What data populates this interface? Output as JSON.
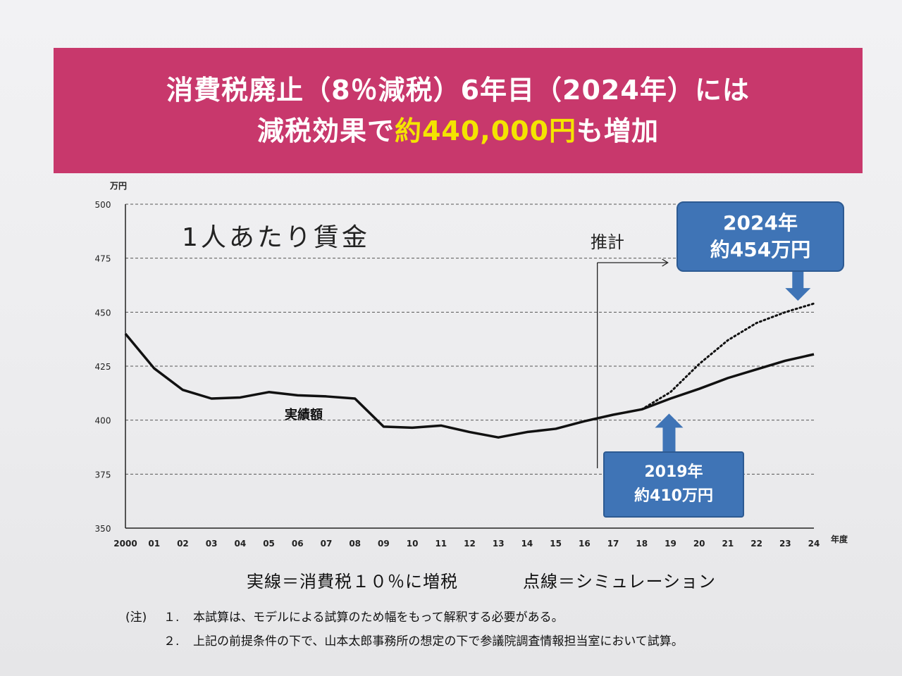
{
  "banner": {
    "line1": "消費税廃止（8％減税）6年目（2024年）には",
    "line2_prefix": "減税効果で",
    "line2_highlight": "約440,000円",
    "line2_suffix": "も増加",
    "background_color": "#c8386c",
    "highlight_color": "#f4e400"
  },
  "chart_data": {
    "type": "line",
    "title": "1人あたり賃金",
    "ylabel": "万円",
    "xlabel": "年度",
    "ylim": [
      350,
      500
    ],
    "yticks": [
      "350",
      "375",
      "400",
      "425",
      "450",
      "475",
      "500"
    ],
    "categories": [
      "2000",
      "01",
      "02",
      "03",
      "04",
      "05",
      "06",
      "07",
      "08",
      "09",
      "10",
      "11",
      "12",
      "13",
      "14",
      "15",
      "16",
      "17",
      "18",
      "19",
      "20",
      "21",
      "22",
      "23",
      "24"
    ],
    "series": [
      {
        "name": "実線＝消費税１０％に増税",
        "label": "実績額",
        "style": "solid",
        "x": [
          "2000",
          "01",
          "02",
          "03",
          "04",
          "05",
          "06",
          "07",
          "08",
          "09",
          "10",
          "11",
          "12",
          "13",
          "14",
          "15",
          "16",
          "17",
          "18",
          "19",
          "20",
          "21",
          "22",
          "23",
          "24"
        ],
        "values": [
          440,
          424,
          414,
          410,
          410.5,
          413,
          411.5,
          411,
          410,
          397,
          396.5,
          397.5,
          394.5,
          392,
          394.5,
          396,
          399.5,
          402.5,
          405,
          410,
          414.5,
          419.5,
          423.5,
          427.5,
          430.5
        ]
      },
      {
        "name": "点線＝シミュレーション",
        "style": "dotted",
        "x": [
          "18",
          "19",
          "20",
          "21",
          "22",
          "23",
          "24"
        ],
        "values": [
          405,
          413,
          426,
          437,
          445,
          450,
          454
        ]
      }
    ],
    "estimate_start": "16",
    "estimate_label": "推計",
    "annotations": [
      {
        "year": "2019年",
        "value": "約410万円"
      },
      {
        "year": "2024年",
        "value": "約454万円"
      }
    ],
    "grid": "horizontal dashed",
    "line_color": "#111111",
    "callout_color": "#3f74b6"
  },
  "legend": {
    "solid": "実線＝消費税１０％に増税",
    "dotted": "点線＝シミュレーション"
  },
  "notes": {
    "prefix": "(注)",
    "items": [
      {
        "num": "１.",
        "text": "本試算は、モデルによる試算のため幅をもって解釈する必要がある。"
      },
      {
        "num": "２.",
        "text": "上記の前提条件の下で、山本太郎事務所の想定の下で参議院調査情報担当室において試算。"
      }
    ]
  }
}
